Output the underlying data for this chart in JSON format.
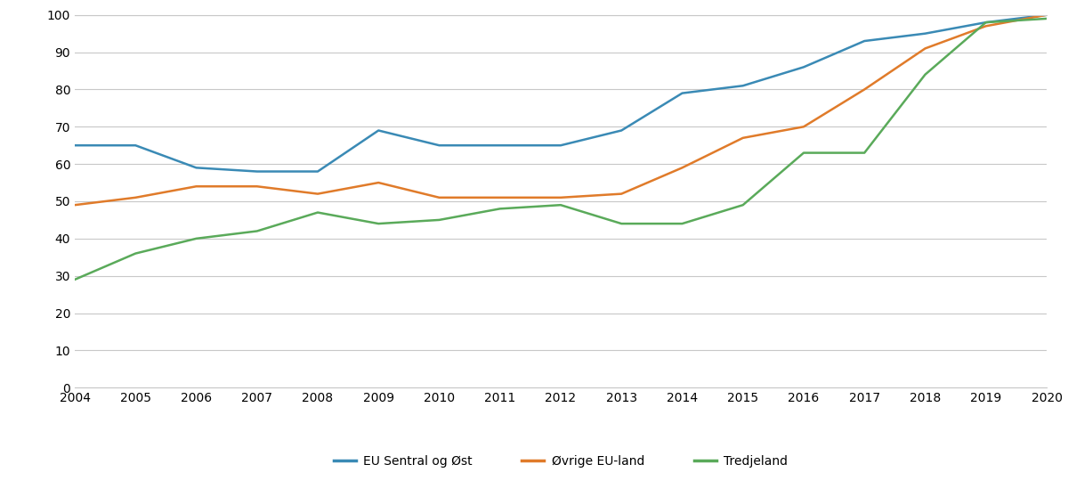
{
  "years": [
    2004,
    2005,
    2006,
    2007,
    2008,
    2009,
    2010,
    2011,
    2012,
    2013,
    2014,
    2015,
    2016,
    2017,
    2018,
    2019,
    2020
  ],
  "eu_central_east": [
    65,
    65,
    59,
    58,
    58,
    69,
    65,
    65,
    65,
    69,
    79,
    81,
    86,
    93,
    95,
    98,
    100
  ],
  "other_eu": [
    49,
    51,
    54,
    54,
    52,
    55,
    51,
    51,
    51,
    52,
    59,
    67,
    70,
    80,
    91,
    97,
    100
  ],
  "third_country": [
    29,
    36,
    40,
    42,
    47,
    44,
    45,
    48,
    49,
    44,
    44,
    49,
    63,
    63,
    84,
    98,
    99
  ],
  "colors": {
    "eu_central_east": "#3a8ab5",
    "other_eu": "#e07b2a",
    "third_country": "#5aaa5a"
  },
  "legend_labels": [
    "EU Sentral og Øst",
    "Øvrige EU-land",
    "Tredjeland"
  ],
  "ylim": [
    0,
    100
  ],
  "yticks": [
    0,
    10,
    20,
    30,
    40,
    50,
    60,
    70,
    80,
    90,
    100
  ],
  "background_color": "#ffffff",
  "grid_color": "#c8c8c8",
  "line_width": 1.8
}
